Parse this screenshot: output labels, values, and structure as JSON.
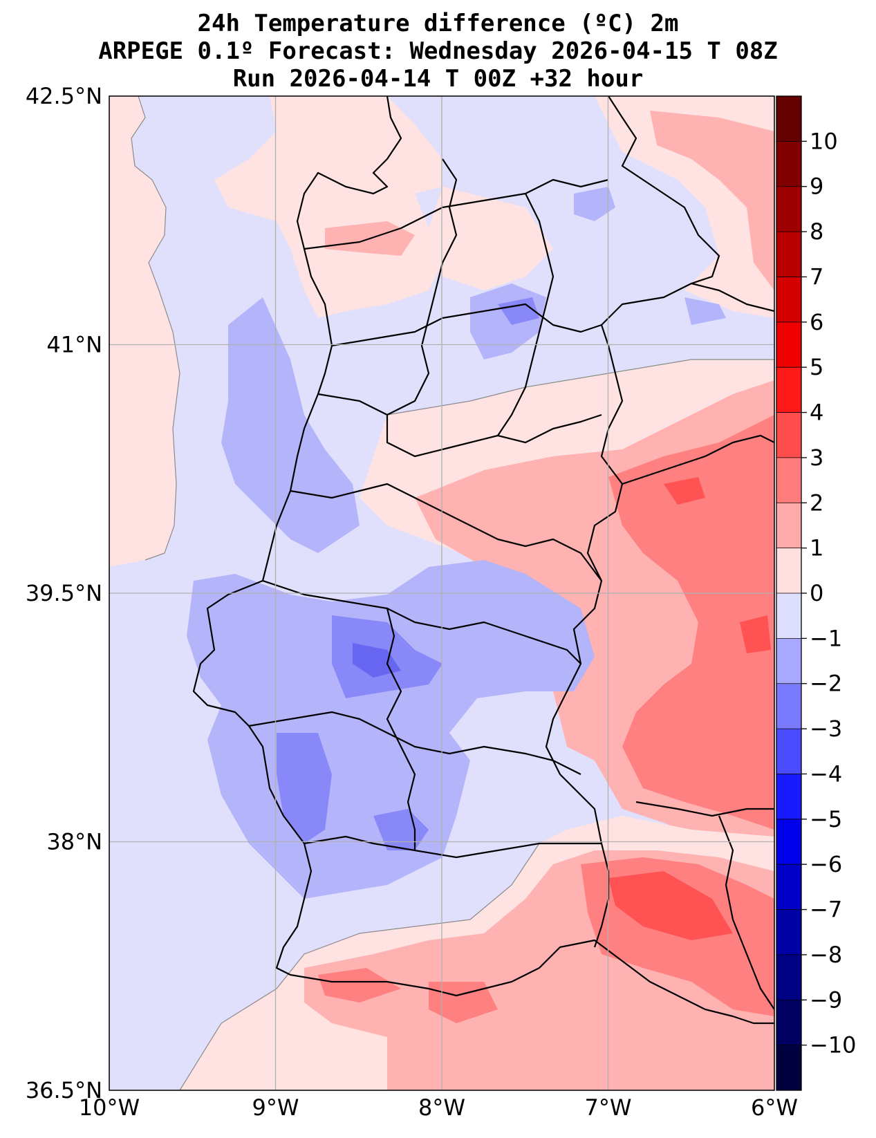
{
  "title": {
    "line1": "24h Temperature difference (ºC) 2m",
    "line2": "ARPEGE 0.1º Forecast: Wednesday 2026-04-15 T 08Z",
    "line3": "Run 2026-04-14 T 00Z +32 hour"
  },
  "axes": {
    "lon_range": [
      -10,
      -6
    ],
    "lat_range": [
      36.5,
      42.5
    ],
    "lat_ticks": [
      {
        "v": 42.5,
        "label": "42.5°N"
      },
      {
        "v": 41,
        "label": "41°N"
      },
      {
        "v": 39.5,
        "label": "39.5°N"
      },
      {
        "v": 38,
        "label": "38°N"
      },
      {
        "v": 36.5,
        "label": "36.5°N"
      }
    ],
    "lon_ticks": [
      {
        "v": -10,
        "label": "10°W"
      },
      {
        "v": -9,
        "label": "9°W"
      },
      {
        "v": -8,
        "label": "8°W"
      },
      {
        "v": -7,
        "label": "7°W"
      },
      {
        "v": -6,
        "label": "6°W"
      }
    ]
  },
  "colorbar": {
    "levels": [
      -11,
      -10,
      -9,
      -8,
      -7,
      -6,
      -5,
      -4,
      -3,
      -2,
      -1,
      0,
      1,
      2,
      3,
      4,
      5,
      6,
      7,
      8,
      9,
      10,
      11
    ],
    "colors": [
      "#00003f",
      "#000060",
      "#000082",
      "#0000a4",
      "#0000c6",
      "#0000ea",
      "#1a1aff",
      "#4c4cff",
      "#7a7aff",
      "#a8a8ff",
      "#dedeff",
      "#ffe0e0",
      "#ffaaaa",
      "#ff7c7c",
      "#ff4c4c",
      "#ff1a1a",
      "#ee0000",
      "#d40000",
      "#b80000",
      "#9c0000",
      "#800000",
      "#640000"
    ],
    "tick_labels": [
      "10",
      "9",
      "8",
      "7",
      "6",
      "5",
      "4",
      "3",
      "2",
      "1",
      "0",
      "−1",
      "−2",
      "−3",
      "−4",
      "−5",
      "−6",
      "−7",
      "−8",
      "−9",
      "−10"
    ]
  },
  "palette": {
    "ocean": "#e0e0fc",
    "light_pos": "#ffe2e2",
    "pos1": "#ffb2b2",
    "pos2": "#ff8080",
    "pos3": "#ff5252",
    "neg1": "#b4b4fa",
    "neg2": "#8888f8",
    "neg3": "#6666f0",
    "border": "#000000",
    "grid": "#b0b0b0",
    "contour": "#8a8a8a"
  }
}
